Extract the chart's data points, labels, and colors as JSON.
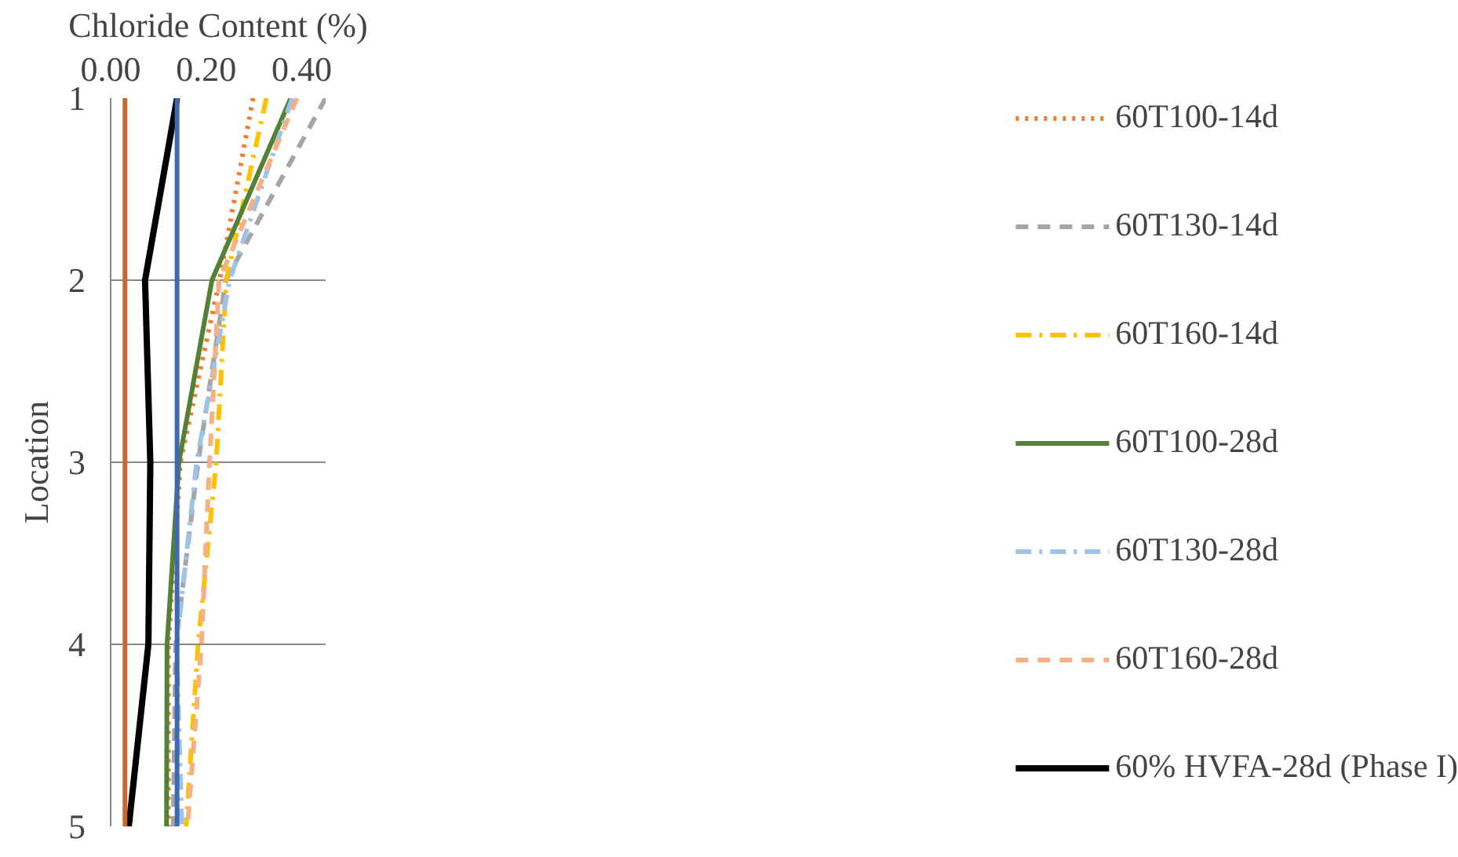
{
  "chart_data": {
    "type": "line",
    "orientation": "horizontal",
    "xlabel": "Chloride Content (%)",
    "ylabel": "Location",
    "categories": [
      "1",
      "2",
      "3",
      "4",
      "5"
    ],
    "xlim": [
      0,
      0.45
    ],
    "xticks": [
      {
        "value": 0,
        "label": "0.00"
      },
      {
        "value": 0.2,
        "label": "0.20"
      },
      {
        "value": 0.4,
        "label": "0.40"
      }
    ],
    "series": [
      {
        "name": "60T100-14d",
        "color": "#ed7d31",
        "line_style": "dotted",
        "values": [
          0.298,
          0.228,
          0.146,
          0.121,
          0.121
        ]
      },
      {
        "name": "60T130-14d",
        "color": "#a5a5a5",
        "line_style": "dashed",
        "values": [
          0.45,
          0.241,
          0.183,
          0.136,
          0.131
        ]
      },
      {
        "name": "60T160-14d",
        "color": "#ffc000",
        "line_style": "dashdot",
        "values": [
          0.326,
          0.242,
          0.221,
          0.183,
          0.158
        ]
      },
      {
        "name": "60T100-28d",
        "color": "#548235",
        "line_style": "solid",
        "values": [
          0.377,
          0.212,
          0.143,
          0.118,
          0.117
        ]
      },
      {
        "name": "60T130-28d",
        "color": "#9dc3e6",
        "line_style": "dashdot",
        "values": [
          0.38,
          0.249,
          0.18,
          0.138,
          0.149
        ]
      },
      {
        "name": "60T160-28d",
        "color": "#f4b183",
        "line_style": "dashed",
        "values": [
          0.39,
          0.227,
          0.207,
          0.19,
          0.161
        ]
      },
      {
        "name": "60% HVFA-28d (Phase I)",
        "color": "#000000",
        "line_style": "solid",
        "values": [
          0.139,
          0.072,
          0.083,
          0.079,
          0.038
        ]
      }
    ],
    "ref_lines": [
      {
        "axis": "x",
        "value": 0.03,
        "color": "#c96a2c"
      },
      {
        "axis": "x",
        "value": 0.139,
        "color": "#4068b0"
      }
    ],
    "grid": "y",
    "legend": "right"
  }
}
